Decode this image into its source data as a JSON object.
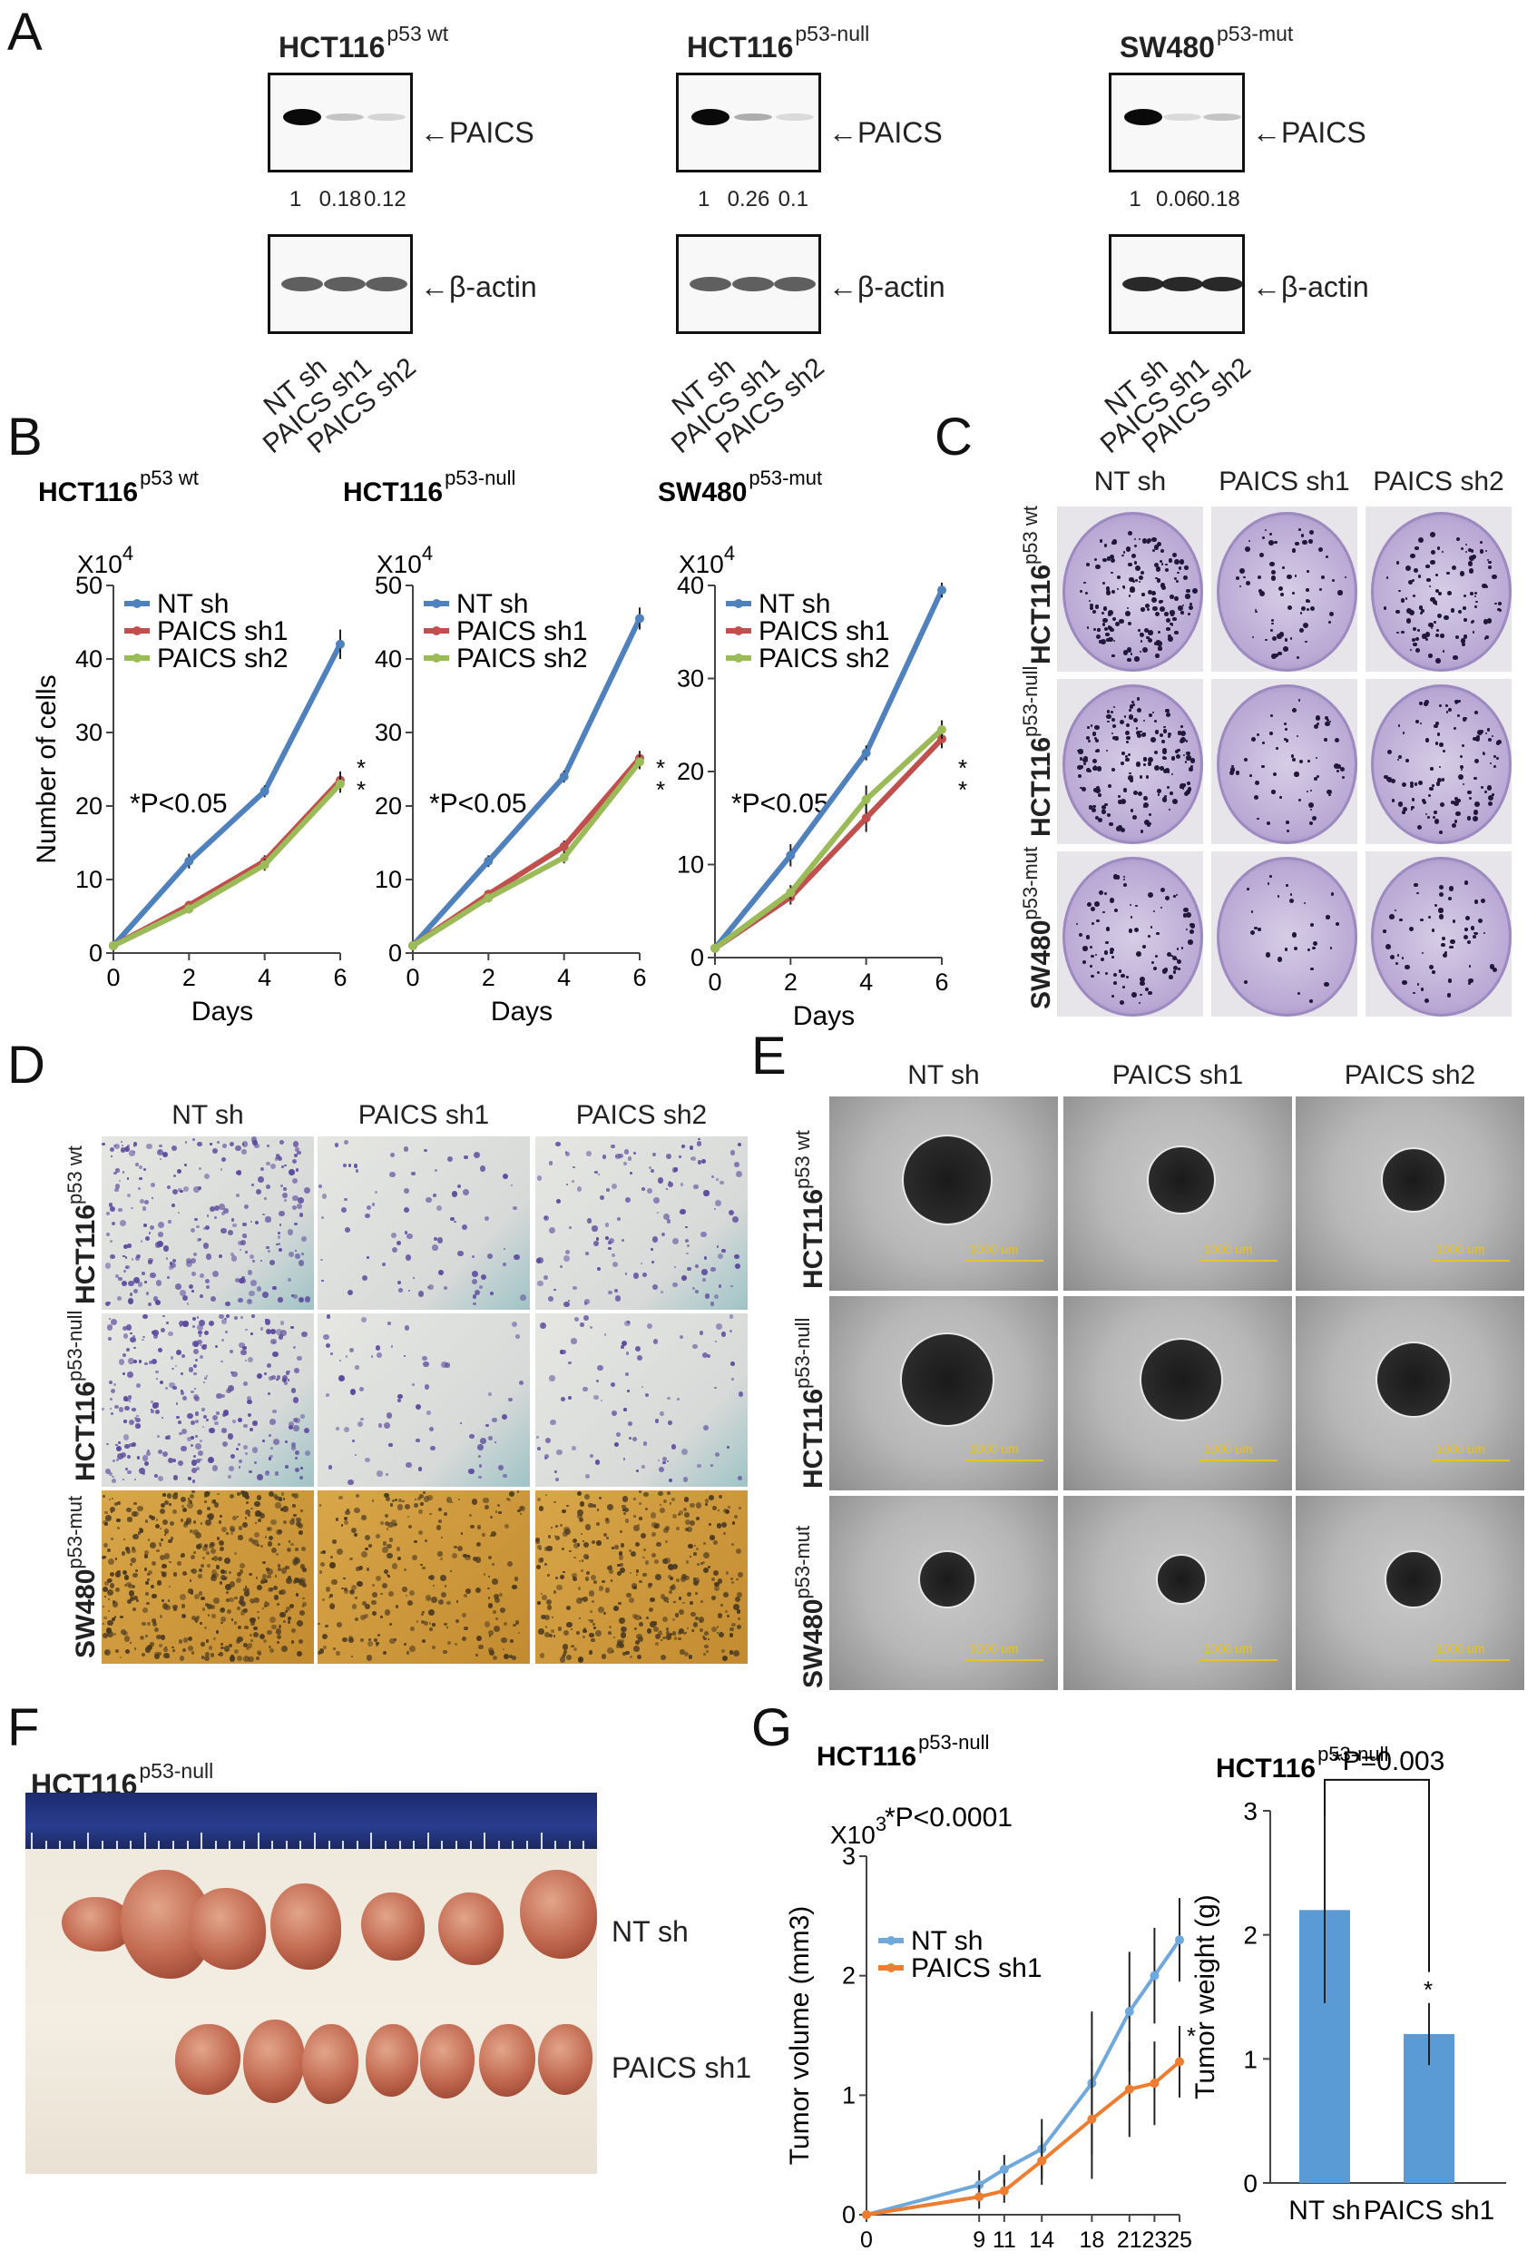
{
  "panels": {
    "A": {
      "label": "A",
      "blots": [
        {
          "title": "HCT116",
          "title_sup": "p53 wt",
          "target": "PAICS",
          "loading": "β-actin",
          "quant": [
            "1",
            "0.18",
            "0.12"
          ]
        },
        {
          "title": "HCT116",
          "title_sup": "p53-null",
          "target": "PAICS",
          "loading": "β-actin",
          "quant": [
            "1",
            "0.26",
            "0.1"
          ]
        },
        {
          "title": "SW480",
          "title_sup": "p53-mut",
          "target": "PAICS",
          "loading": "β-actin",
          "quant": [
            "1",
            "0.06",
            "0.18"
          ]
        }
      ],
      "lanes": [
        "NT sh",
        "PAICS sh1",
        "PAICS sh2"
      ]
    },
    "B": {
      "label": "B"
    },
    "C": {
      "label": "C",
      "columns": [
        "NT sh",
        "PAICS sh1",
        "PAICS sh2"
      ],
      "rows": [
        {
          "name": "HCT116",
          "sup": "p53 wt"
        },
        {
          "name": "HCT116",
          "sup": "p53-null"
        },
        {
          "name": "SW480",
          "sup": "p53-mut"
        }
      ]
    },
    "D": {
      "label": "D",
      "columns": [
        "NT sh",
        "PAICS sh1",
        "PAICS sh2"
      ],
      "rows": [
        {
          "name": "HCT116",
          "sup": "p53 wt"
        },
        {
          "name": "HCT116",
          "sup": "p53-null"
        },
        {
          "name": "SW480",
          "sup": "p53-mut"
        }
      ]
    },
    "E": {
      "label": "E",
      "columns": [
        "NT sh",
        "PAICS sh1",
        "PAICS sh2"
      ],
      "rows": [
        {
          "name": "HCT116",
          "sup": "p53 wt"
        },
        {
          "name": "HCT116",
          "sup": "p53-null"
        },
        {
          "name": "SW480",
          "sup": "p53-mut"
        }
      ],
      "scale_bar": "1000 um"
    },
    "F": {
      "label": "F",
      "title": "HCT116",
      "title_sup": "p53-null",
      "row_labels": [
        "NT sh",
        "PAICS sh1"
      ]
    },
    "G": {
      "label": "G"
    }
  },
  "colors": {
    "nt": "#4F81BD",
    "sh1": "#C0504D",
    "sh2": "#9BBB59",
    "g_nt": "#6FA8DC",
    "g_sh1": "#ED7D31",
    "bar": "#5B9BD5"
  },
  "chart_data": [
    {
      "type": "line",
      "title": "HCT116",
      "title_sup": "p53 wt",
      "multiplier": "X10",
      "multiplier_exp": "4",
      "xlabel": "Days",
      "ylabel": "Number of cells",
      "x": [
        0,
        2,
        4,
        6
      ],
      "xlim": [
        0,
        6
      ],
      "ylim": [
        0,
        50
      ],
      "yticks": [
        0,
        10,
        20,
        30,
        40,
        50
      ],
      "annotation": "*P<0.05",
      "series": [
        {
          "name": "NT sh",
          "values": [
            1,
            12.5,
            22,
            42
          ],
          "errors": [
            0.3,
            1,
            0.8,
            2
          ]
        },
        {
          "name": "PAICS sh1",
          "values": [
            1,
            6.5,
            12.5,
            23.5
          ],
          "errors": [
            0.3,
            0.6,
            0.8,
            1.2
          ]
        },
        {
          "name": "PAICS sh2",
          "values": [
            1,
            6,
            12,
            23
          ],
          "errors": [
            0.3,
            0.6,
            0.8,
            1.2
          ]
        }
      ],
      "sig_marks": [
        "*",
        "*"
      ]
    },
    {
      "type": "line",
      "title": "HCT116",
      "title_sup": "p53-null",
      "multiplier": "X10",
      "multiplier_exp": "4",
      "xlabel": "Days",
      "ylabel": "",
      "x": [
        0,
        2,
        4,
        6
      ],
      "xlim": [
        0,
        6
      ],
      "ylim": [
        0,
        50
      ],
      "yticks": [
        0,
        10,
        20,
        30,
        40,
        50
      ],
      "annotation": "*P<0.05",
      "series": [
        {
          "name": "NT sh",
          "values": [
            1,
            12.5,
            24,
            45.5
          ],
          "errors": [
            0.3,
            0.8,
            0.8,
            1.5
          ]
        },
        {
          "name": "PAICS sh1",
          "values": [
            1,
            8,
            14.5,
            26.5
          ],
          "errors": [
            0.3,
            0.6,
            0.8,
            1
          ]
        },
        {
          "name": "PAICS sh2",
          "values": [
            1,
            7.5,
            13,
            26
          ],
          "errors": [
            0.3,
            0.6,
            0.8,
            1
          ]
        }
      ],
      "sig_marks": [
        "*",
        "*"
      ]
    },
    {
      "type": "line",
      "title": "SW480",
      "title_sup": "p53-mut",
      "multiplier": "X10",
      "multiplier_exp": "4",
      "xlabel": "Days",
      "ylabel": "",
      "x": [
        0,
        2,
        4,
        6
      ],
      "xlim": [
        0,
        6
      ],
      "ylim": [
        0,
        40
      ],
      "yticks": [
        0,
        10,
        20,
        30,
        40
      ],
      "annotation": "*P<0.05",
      "series": [
        {
          "name": "NT sh",
          "values": [
            1,
            11,
            22,
            39.5
          ],
          "errors": [
            0.3,
            1.2,
            0.8,
            0.8
          ]
        },
        {
          "name": "PAICS sh1",
          "values": [
            1,
            6.5,
            15,
            23.5
          ],
          "errors": [
            0.3,
            0.8,
            1.5,
            1
          ]
        },
        {
          "name": "PAICS sh2",
          "values": [
            1,
            7,
            17,
            24.5
          ],
          "errors": [
            0.3,
            0.8,
            1.5,
            1
          ]
        }
      ],
      "sig_marks": [
        "*",
        "*"
      ]
    },
    {
      "type": "line",
      "title": "HCT116",
      "title_sup": "p53-null",
      "multiplier": "X10",
      "multiplier_exp": "3",
      "xlabel": "Days",
      "ylabel": "Tumor volume (mm3)",
      "x": [
        0,
        9,
        11,
        14,
        18,
        21,
        23,
        25
      ],
      "xlim": [
        0,
        25
      ],
      "ylim": [
        0,
        3
      ],
      "yticks": [
        0,
        1,
        2,
        3
      ],
      "annotation": "*P<0.0001",
      "series": [
        {
          "name": "NT sh",
          "values": [
            0,
            0.25,
            0.38,
            0.55,
            1.1,
            1.7,
            2.0,
            2.3
          ],
          "errors": [
            0.02,
            0.12,
            0.12,
            0.25,
            0.6,
            0.5,
            0.4,
            0.35
          ]
        },
        {
          "name": "PAICS sh1",
          "values": [
            0,
            0.15,
            0.2,
            0.45,
            0.8,
            1.05,
            1.1,
            1.28
          ],
          "errors": [
            0.02,
            0.1,
            0.1,
            0.2,
            0.5,
            0.4,
            0.35,
            0.3
          ]
        }
      ],
      "sig_marks": [
        "*"
      ]
    },
    {
      "type": "bar",
      "title": "HCT116",
      "title_sup": "p53-null",
      "ylabel": "Tumor weight (g)",
      "categories": [
        "NT sh",
        "PAICS sh1"
      ],
      "values": [
        2.2,
        1.2
      ],
      "errors": [
        0.75,
        0.25
      ],
      "ylim": [
        0,
        3
      ],
      "yticks": [
        0,
        1,
        2,
        3
      ],
      "annotation": "*P=0.003",
      "sig_marks": [
        "*"
      ]
    }
  ]
}
